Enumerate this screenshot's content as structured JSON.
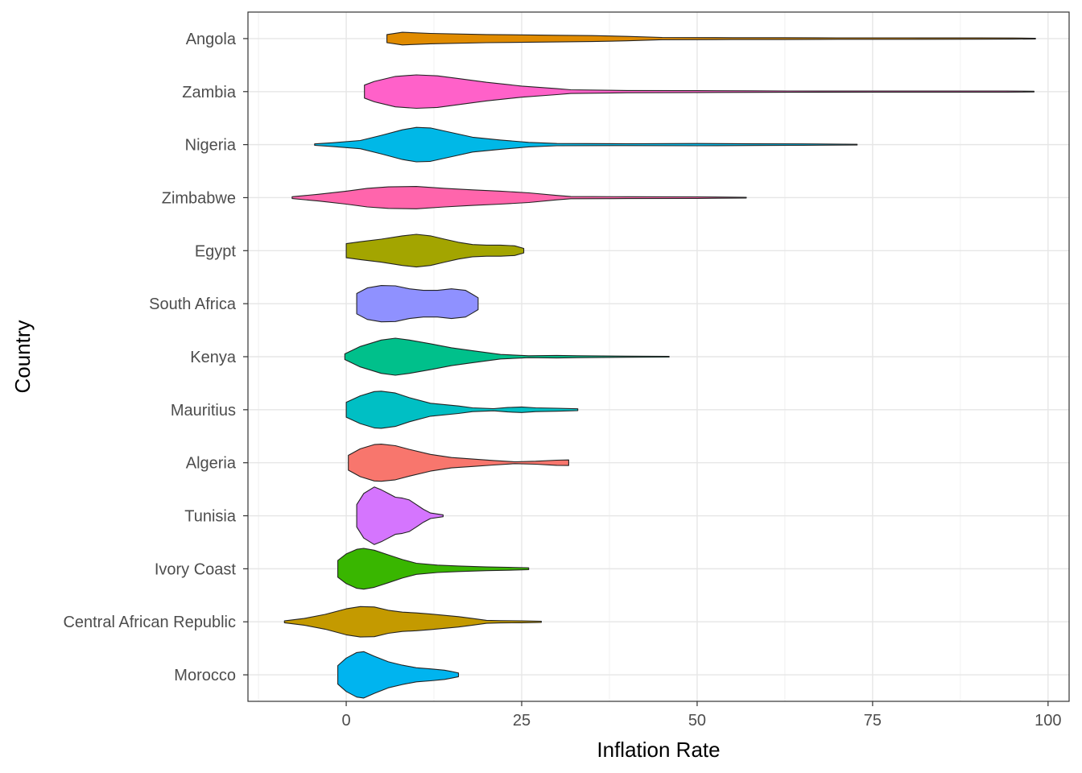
{
  "chart_data": {
    "type": "violin",
    "orientation": "horizontal",
    "xlabel": "Inflation Rate",
    "ylabel": "Country",
    "xlim": [
      -14,
      103
    ],
    "xticks": [
      0,
      25,
      50,
      75,
      100
    ],
    "grid": true,
    "legend": "none",
    "series": [
      {
        "name": "Angola",
        "color": "#E08B00",
        "min": 5.8,
        "max": 98.2,
        "density": [
          [
            5.8,
            0.22
          ],
          [
            8,
            0.34
          ],
          [
            12,
            0.28
          ],
          [
            20,
            0.22
          ],
          [
            30,
            0.18
          ],
          [
            35,
            0.16
          ],
          [
            40,
            0.12
          ],
          [
            45,
            0.06
          ],
          [
            55,
            0.05
          ],
          [
            62,
            0.05
          ],
          [
            70,
            0.04
          ],
          [
            80,
            0.04
          ],
          [
            90,
            0.035
          ],
          [
            95,
            0.03
          ],
          [
            98.2,
            0.02
          ]
        ]
      },
      {
        "name": "Zambia",
        "color": "#FF61C9",
        "min": 2.6,
        "max": 98,
        "density": [
          [
            2.6,
            0.35
          ],
          [
            4,
            0.55
          ],
          [
            7,
            0.82
          ],
          [
            10,
            0.9
          ],
          [
            13,
            0.85
          ],
          [
            16,
            0.7
          ],
          [
            20,
            0.5
          ],
          [
            25,
            0.3
          ],
          [
            30,
            0.16
          ],
          [
            32,
            0.1
          ],
          [
            40,
            0.06
          ],
          [
            50,
            0.05
          ],
          [
            58,
            0.04
          ],
          [
            63,
            0.035
          ],
          [
            75,
            0.03
          ],
          [
            85,
            0.03
          ],
          [
            94,
            0.03
          ],
          [
            98,
            0.02
          ]
        ]
      },
      {
        "name": "Nigeria",
        "color": "#00B8E7",
        "min": -4.5,
        "max": 72.8,
        "density": [
          [
            -4.5,
            0.04
          ],
          [
            -2,
            0.1
          ],
          [
            2,
            0.22
          ],
          [
            5,
            0.5
          ],
          [
            8,
            0.8
          ],
          [
            10,
            0.93
          ],
          [
            12,
            0.9
          ],
          [
            15,
            0.65
          ],
          [
            18,
            0.4
          ],
          [
            22,
            0.25
          ],
          [
            26,
            0.12
          ],
          [
            30,
            0.06
          ],
          [
            40,
            0.05
          ],
          [
            50,
            0.06
          ],
          [
            58,
            0.045
          ],
          [
            65,
            0.04
          ],
          [
            72.8,
            0.02
          ]
        ]
      },
      {
        "name": "Zimbabwe",
        "color": "#FF65AC",
        "min": -7.7,
        "max": 57,
        "density": [
          [
            -7.7,
            0.05
          ],
          [
            -4,
            0.18
          ],
          [
            0,
            0.35
          ],
          [
            3,
            0.5
          ],
          [
            6,
            0.58
          ],
          [
            10,
            0.6
          ],
          [
            14,
            0.5
          ],
          [
            18,
            0.42
          ],
          [
            22,
            0.35
          ],
          [
            26,
            0.26
          ],
          [
            30,
            0.12
          ],
          [
            32,
            0.06
          ],
          [
            40,
            0.05
          ],
          [
            50,
            0.04
          ],
          [
            57,
            0.02
          ]
        ]
      },
      {
        "name": "Egypt",
        "color": "#A3A500",
        "min": 0,
        "max": 25.3,
        "density": [
          [
            0,
            0.38
          ],
          [
            2,
            0.48
          ],
          [
            5,
            0.62
          ],
          [
            8,
            0.8
          ],
          [
            10,
            0.88
          ],
          [
            12,
            0.8
          ],
          [
            14,
            0.62
          ],
          [
            16,
            0.45
          ],
          [
            18,
            0.33
          ],
          [
            20,
            0.3
          ],
          [
            22,
            0.3
          ],
          [
            24,
            0.26
          ],
          [
            25.3,
            0.12
          ]
        ]
      },
      {
        "name": "South Africa",
        "color": "#8F91FF",
        "min": 1.5,
        "max": 18.8,
        "density": [
          [
            1.5,
            0.55
          ],
          [
            3,
            0.85
          ],
          [
            5,
            0.98
          ],
          [
            7,
            0.96
          ],
          [
            9,
            0.8
          ],
          [
            11,
            0.72
          ],
          [
            13,
            0.72
          ],
          [
            15,
            0.8
          ],
          [
            17,
            0.72
          ],
          [
            18,
            0.5
          ],
          [
            18.8,
            0.32
          ]
        ]
      },
      {
        "name": "Kenya",
        "color": "#00C08B",
        "min": -0.2,
        "max": 46,
        "density": [
          [
            -0.2,
            0.15
          ],
          [
            2,
            0.55
          ],
          [
            5,
            0.9
          ],
          [
            7,
            1.0
          ],
          [
            9,
            0.9
          ],
          [
            12,
            0.7
          ],
          [
            15,
            0.48
          ],
          [
            18,
            0.32
          ],
          [
            22,
            0.12
          ],
          [
            26,
            0.05
          ],
          [
            30,
            0.07
          ],
          [
            33,
            0.05
          ],
          [
            40,
            0.03
          ],
          [
            46,
            0.02
          ]
        ]
      },
      {
        "name": "Mauritius",
        "color": "#00BFC4",
        "min": 0,
        "max": 33,
        "density": [
          [
            0,
            0.4
          ],
          [
            2,
            0.75
          ],
          [
            4,
            0.98
          ],
          [
            5,
            1.0
          ],
          [
            7,
            0.9
          ],
          [
            9,
            0.65
          ],
          [
            12,
            0.35
          ],
          [
            16,
            0.2
          ],
          [
            18,
            0.1
          ],
          [
            21,
            0.06
          ],
          [
            23,
            0.12
          ],
          [
            25,
            0.15
          ],
          [
            27,
            0.1
          ],
          [
            30,
            0.08
          ],
          [
            33,
            0.05
          ]
        ]
      },
      {
        "name": "Algeria",
        "color": "#F8766D",
        "min": 0.3,
        "max": 31.7,
        "density": [
          [
            0.3,
            0.4
          ],
          [
            2,
            0.75
          ],
          [
            4,
            0.98
          ],
          [
            5,
            1.0
          ],
          [
            7,
            0.92
          ],
          [
            9,
            0.72
          ],
          [
            12,
            0.45
          ],
          [
            15,
            0.28
          ],
          [
            18,
            0.2
          ],
          [
            21,
            0.12
          ],
          [
            24,
            0.05
          ],
          [
            27,
            0.08
          ],
          [
            30,
            0.14
          ],
          [
            31.7,
            0.15
          ]
        ]
      },
      {
        "name": "Tunisia",
        "color": "#D575FE",
        "min": 1.5,
        "max": 13.8,
        "density": [
          [
            1.5,
            0.6
          ],
          [
            2.5,
            1.2
          ],
          [
            4,
            1.55
          ],
          [
            5,
            1.4
          ],
          [
            6,
            1.2
          ],
          [
            7,
            1.0
          ],
          [
            8,
            0.95
          ],
          [
            9,
            0.85
          ],
          [
            10,
            0.6
          ],
          [
            11,
            0.35
          ],
          [
            12,
            0.15
          ],
          [
            13.8,
            0.05
          ]
        ]
      },
      {
        "name": "Ivory Coast",
        "color": "#39B600",
        "min": -1.2,
        "max": 26,
        "density": [
          [
            -1.2,
            0.45
          ],
          [
            0,
            0.8
          ],
          [
            1.5,
            1.05
          ],
          [
            2.5,
            1.1
          ],
          [
            4,
            1.0
          ],
          [
            6,
            0.75
          ],
          [
            8,
            0.5
          ],
          [
            10,
            0.3
          ],
          [
            13,
            0.2
          ],
          [
            16,
            0.15
          ],
          [
            20,
            0.1
          ],
          [
            23,
            0.08
          ],
          [
            26,
            0.05
          ]
        ]
      },
      {
        "name": "Central African Republic",
        "color": "#C49A00",
        "min": -8.8,
        "max": 27.8,
        "density": [
          [
            -8.8,
            0.05
          ],
          [
            -6,
            0.18
          ],
          [
            -3,
            0.4
          ],
          [
            0,
            0.7
          ],
          [
            2,
            0.82
          ],
          [
            4,
            0.8
          ],
          [
            6,
            0.62
          ],
          [
            8,
            0.52
          ],
          [
            10,
            0.48
          ],
          [
            12,
            0.42
          ],
          [
            14,
            0.35
          ],
          [
            16,
            0.28
          ],
          [
            18,
            0.18
          ],
          [
            20,
            0.08
          ],
          [
            22,
            0.06
          ],
          [
            25,
            0.05
          ],
          [
            27.8,
            0.03
          ]
        ]
      },
      {
        "name": "Morocco",
        "color": "#00B4EF",
        "min": -1.2,
        "max": 16,
        "density": [
          [
            -1.2,
            0.5
          ],
          [
            0,
            0.9
          ],
          [
            1.5,
            1.2
          ],
          [
            2.5,
            1.25
          ],
          [
            4,
            1.0
          ],
          [
            6,
            0.7
          ],
          [
            8,
            0.52
          ],
          [
            10,
            0.38
          ],
          [
            12,
            0.32
          ],
          [
            14,
            0.25
          ],
          [
            15,
            0.18
          ],
          [
            16,
            0.1
          ]
        ]
      }
    ]
  }
}
